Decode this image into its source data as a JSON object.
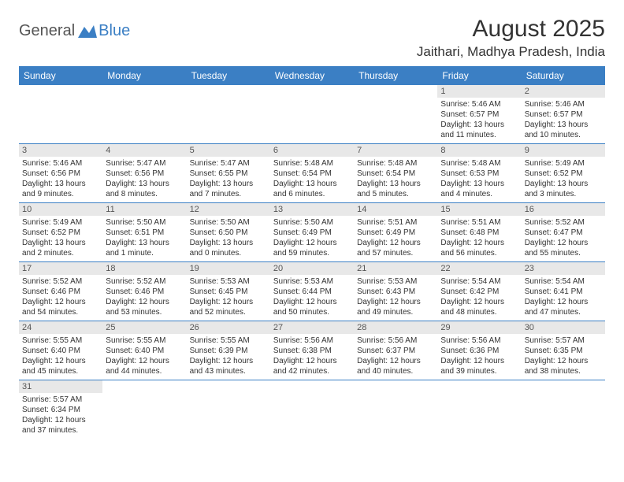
{
  "logo": {
    "general": "General",
    "blue": "Blue"
  },
  "title": "August 2025",
  "location": "Jaithari, Madhya Pradesh, India",
  "colors": {
    "header_bg": "#3b7fc4",
    "header_text": "#ffffff",
    "daynum_bg": "#e8e8e8",
    "border": "#3b7fc4",
    "text": "#333333",
    "logo_gray": "#555555",
    "logo_blue": "#3b7fc4",
    "background": "#ffffff"
  },
  "day_headers": [
    "Sunday",
    "Monday",
    "Tuesday",
    "Wednesday",
    "Thursday",
    "Friday",
    "Saturday"
  ],
  "weeks": [
    [
      null,
      null,
      null,
      null,
      null,
      {
        "n": "1",
        "sunrise": "5:46 AM",
        "sunset": "6:57 PM",
        "daylight": "13 hours and 11 minutes."
      },
      {
        "n": "2",
        "sunrise": "5:46 AM",
        "sunset": "6:57 PM",
        "daylight": "13 hours and 10 minutes."
      }
    ],
    [
      {
        "n": "3",
        "sunrise": "5:46 AM",
        "sunset": "6:56 PM",
        "daylight": "13 hours and 9 minutes."
      },
      {
        "n": "4",
        "sunrise": "5:47 AM",
        "sunset": "6:56 PM",
        "daylight": "13 hours and 8 minutes."
      },
      {
        "n": "5",
        "sunrise": "5:47 AM",
        "sunset": "6:55 PM",
        "daylight": "13 hours and 7 minutes."
      },
      {
        "n": "6",
        "sunrise": "5:48 AM",
        "sunset": "6:54 PM",
        "daylight": "13 hours and 6 minutes."
      },
      {
        "n": "7",
        "sunrise": "5:48 AM",
        "sunset": "6:54 PM",
        "daylight": "13 hours and 5 minutes."
      },
      {
        "n": "8",
        "sunrise": "5:48 AM",
        "sunset": "6:53 PM",
        "daylight": "13 hours and 4 minutes."
      },
      {
        "n": "9",
        "sunrise": "5:49 AM",
        "sunset": "6:52 PM",
        "daylight": "13 hours and 3 minutes."
      }
    ],
    [
      {
        "n": "10",
        "sunrise": "5:49 AM",
        "sunset": "6:52 PM",
        "daylight": "13 hours and 2 minutes."
      },
      {
        "n": "11",
        "sunrise": "5:50 AM",
        "sunset": "6:51 PM",
        "daylight": "13 hours and 1 minute."
      },
      {
        "n": "12",
        "sunrise": "5:50 AM",
        "sunset": "6:50 PM",
        "daylight": "13 hours and 0 minutes."
      },
      {
        "n": "13",
        "sunrise": "5:50 AM",
        "sunset": "6:49 PM",
        "daylight": "12 hours and 59 minutes."
      },
      {
        "n": "14",
        "sunrise": "5:51 AM",
        "sunset": "6:49 PM",
        "daylight": "12 hours and 57 minutes."
      },
      {
        "n": "15",
        "sunrise": "5:51 AM",
        "sunset": "6:48 PM",
        "daylight": "12 hours and 56 minutes."
      },
      {
        "n": "16",
        "sunrise": "5:52 AM",
        "sunset": "6:47 PM",
        "daylight": "12 hours and 55 minutes."
      }
    ],
    [
      {
        "n": "17",
        "sunrise": "5:52 AM",
        "sunset": "6:46 PM",
        "daylight": "12 hours and 54 minutes."
      },
      {
        "n": "18",
        "sunrise": "5:52 AM",
        "sunset": "6:46 PM",
        "daylight": "12 hours and 53 minutes."
      },
      {
        "n": "19",
        "sunrise": "5:53 AM",
        "sunset": "6:45 PM",
        "daylight": "12 hours and 52 minutes."
      },
      {
        "n": "20",
        "sunrise": "5:53 AM",
        "sunset": "6:44 PM",
        "daylight": "12 hours and 50 minutes."
      },
      {
        "n": "21",
        "sunrise": "5:53 AM",
        "sunset": "6:43 PM",
        "daylight": "12 hours and 49 minutes."
      },
      {
        "n": "22",
        "sunrise": "5:54 AM",
        "sunset": "6:42 PM",
        "daylight": "12 hours and 48 minutes."
      },
      {
        "n": "23",
        "sunrise": "5:54 AM",
        "sunset": "6:41 PM",
        "daylight": "12 hours and 47 minutes."
      }
    ],
    [
      {
        "n": "24",
        "sunrise": "5:55 AM",
        "sunset": "6:40 PM",
        "daylight": "12 hours and 45 minutes."
      },
      {
        "n": "25",
        "sunrise": "5:55 AM",
        "sunset": "6:40 PM",
        "daylight": "12 hours and 44 minutes."
      },
      {
        "n": "26",
        "sunrise": "5:55 AM",
        "sunset": "6:39 PM",
        "daylight": "12 hours and 43 minutes."
      },
      {
        "n": "27",
        "sunrise": "5:56 AM",
        "sunset": "6:38 PM",
        "daylight": "12 hours and 42 minutes."
      },
      {
        "n": "28",
        "sunrise": "5:56 AM",
        "sunset": "6:37 PM",
        "daylight": "12 hours and 40 minutes."
      },
      {
        "n": "29",
        "sunrise": "5:56 AM",
        "sunset": "6:36 PM",
        "daylight": "12 hours and 39 minutes."
      },
      {
        "n": "30",
        "sunrise": "5:57 AM",
        "sunset": "6:35 PM",
        "daylight": "12 hours and 38 minutes."
      }
    ],
    [
      {
        "n": "31",
        "sunrise": "5:57 AM",
        "sunset": "6:34 PM",
        "daylight": "12 hours and 37 minutes."
      },
      null,
      null,
      null,
      null,
      null,
      null
    ]
  ],
  "labels": {
    "sunrise_prefix": "Sunrise: ",
    "sunset_prefix": "Sunset: ",
    "daylight_prefix": "Daylight: "
  }
}
